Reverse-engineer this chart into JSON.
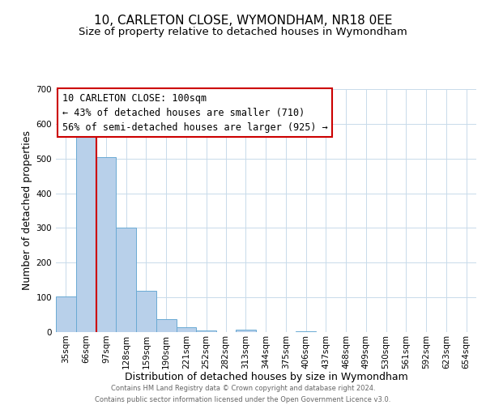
{
  "title": "10, CARLETON CLOSE, WYMONDHAM, NR18 0EE",
  "subtitle": "Size of property relative to detached houses in Wymondham",
  "xlabel": "Distribution of detached houses by size in Wymondham",
  "ylabel": "Number of detached properties",
  "footer_line1": "Contains HM Land Registry data © Crown copyright and database right 2024.",
  "footer_line2": "Contains public sector information licensed under the Open Government Licence v3.0.",
  "bin_labels": [
    "35sqm",
    "66sqm",
    "97sqm",
    "128sqm",
    "159sqm",
    "190sqm",
    "221sqm",
    "252sqm",
    "282sqm",
    "313sqm",
    "344sqm",
    "375sqm",
    "406sqm",
    "437sqm",
    "468sqm",
    "499sqm",
    "530sqm",
    "561sqm",
    "592sqm",
    "623sqm",
    "654sqm"
  ],
  "bar_values": [
    102,
    575,
    505,
    300,
    118,
    38,
    14,
    5,
    0,
    8,
    0,
    0,
    3,
    0,
    0,
    0,
    0,
    0,
    0,
    0,
    0
  ],
  "bar_color": "#b8d0ea",
  "bar_edge_color": "#6aaad4",
  "property_line_x": 97,
  "property_line_color": "#cc0000",
  "annotation_title": "10 CARLETON CLOSE: 100sqm",
  "annotation_line2": "← 43% of detached houses are smaller (710)",
  "annotation_line3": "56% of semi-detached houses are larger (925) →",
  "annotation_box_color": "#cc0000",
  "ylim": [
    0,
    700
  ],
  "yticks": [
    0,
    100,
    200,
    300,
    400,
    500,
    600,
    700
  ],
  "background_color": "#ffffff",
  "grid_color": "#c8daea",
  "title_fontsize": 11,
  "subtitle_fontsize": 9.5,
  "axis_label_fontsize": 9,
  "tick_fontsize": 7.5,
  "annotation_fontsize": 8.5,
  "bin_width": 31,
  "bin_starts": [
    35,
    66,
    97,
    128,
    159,
    190,
    221,
    252,
    282,
    313,
    344,
    375,
    406,
    437,
    468,
    499,
    530,
    561,
    592,
    623,
    654
  ]
}
